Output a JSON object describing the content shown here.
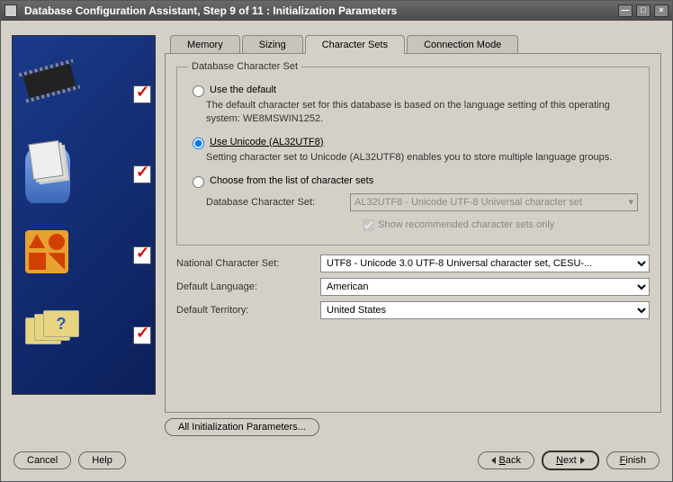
{
  "window": {
    "title": "Database Configuration Assistant, Step 9 of 11 : Initialization Parameters"
  },
  "tabs": {
    "memory": "Memory",
    "sizing": "Sizing",
    "charsets": "Character Sets",
    "connmode": "Connection Mode",
    "active": "charsets"
  },
  "group": {
    "legend": "Database Character Set",
    "opt_default": {
      "label": "Use the default",
      "desc": "The default character set for this database is based on the language setting of this operating system: WE8MSWIN1252."
    },
    "opt_unicode": {
      "label": "Use Unicode (AL32UTF8)",
      "desc": "Setting character set to Unicode (AL32UTF8) enables you to store multiple language groups."
    },
    "opt_choose": {
      "label": "Choose from the list of character sets",
      "db_charset_label": "Database Character Set:",
      "db_charset_value": "AL32UTF8 - Unicode UTF-8 Universal character set",
      "show_recommended": "Show recommended character sets only"
    },
    "selected": "opt_unicode"
  },
  "fields": {
    "national_charset_label": "National Character Set:",
    "national_charset_value": "UTF8 - Unicode 3.0 UTF-8 Universal character set, CESU-...",
    "default_language_label": "Default Language:",
    "default_language_value": "American",
    "default_territory_label": "Default Territory:",
    "default_territory_value": "United States"
  },
  "buttons": {
    "all_params": "All Initialization Parameters...",
    "cancel": "Cancel",
    "help": "Help",
    "back": "Back",
    "next": "Next",
    "finish": "Finish"
  },
  "colors": {
    "panel_bg": "#d4d0c8",
    "sidebar_grad_from": "#1a3a8a",
    "sidebar_grad_to": "#0c1f5a",
    "check_color": "#d00000",
    "disabled_text": "#888888"
  }
}
